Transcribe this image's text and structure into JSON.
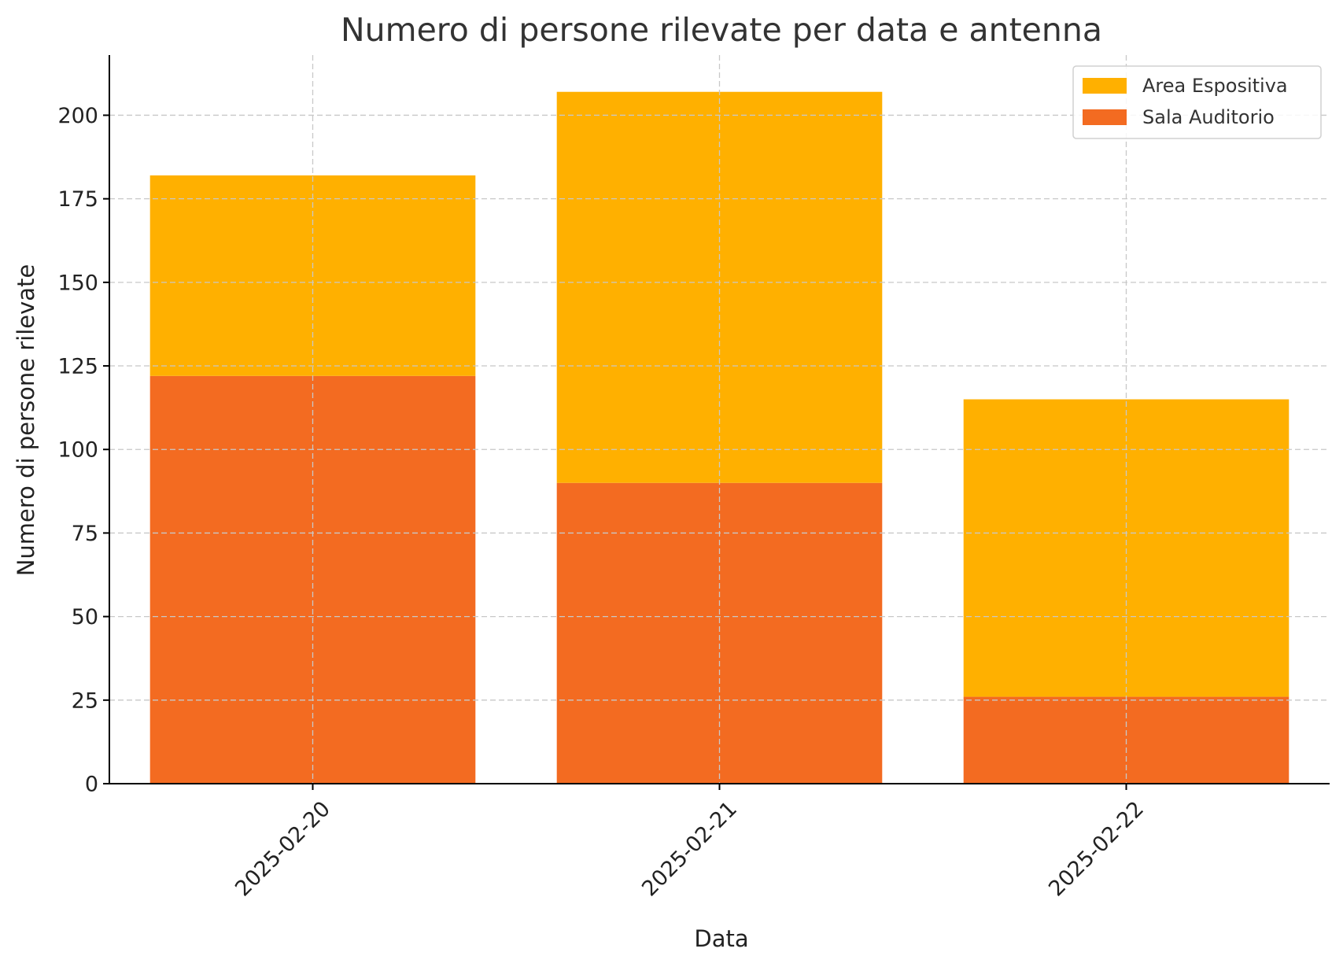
{
  "chart_data": {
    "type": "bar",
    "stacked": true,
    "title": "Numero di persone rilevate per data e antenna",
    "xlabel": "Data",
    "ylabel": "Numero di persone rilevate",
    "categories": [
      "2025-02-20",
      "2025-02-21",
      "2025-02-22"
    ],
    "series": [
      {
        "name": "Sala Auditorio",
        "values": [
          122,
          90,
          26
        ],
        "color": "#f36b21"
      },
      {
        "name": "Area Espositiva",
        "values": [
          60,
          117,
          89
        ],
        "color": "#ffb000"
      }
    ],
    "legend_order": [
      "Area Espositiva",
      "Sala Auditorio"
    ],
    "legend_position": "top-right",
    "ylim": [
      0,
      218
    ],
    "yticks": [
      0,
      25,
      50,
      75,
      100,
      125,
      150,
      175,
      200
    ],
    "grid": true
  }
}
